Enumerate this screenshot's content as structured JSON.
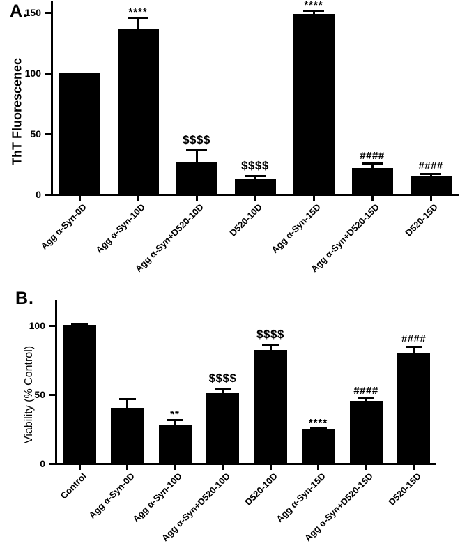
{
  "chart_data": [
    {
      "type": "bar",
      "panel_label": "A.",
      "title": "",
      "ylabel": "ThT Fluorescenec",
      "xlabel": "",
      "categories": [
        "Agg α-Syn-0D",
        "Agg α-Syn-10D",
        "Agg α-Syn+D520-10D",
        "D520-10D",
        "Agg α-Syn-15D",
        "Agg α-Syn+D520-15D",
        "D520-15D"
      ],
      "values": [
        100,
        136,
        26,
        12,
        148,
        21,
        15
      ],
      "errors": [
        0,
        10,
        11,
        3.5,
        4,
        5,
        2
      ],
      "annotations": [
        "",
        "****",
        "$$$$",
        "$$$$",
        "****",
        "####",
        "####"
      ],
      "yticks": [
        0,
        50,
        100,
        150
      ],
      "ylim": [
        0,
        158
      ],
      "grid": false,
      "legend": null,
      "bar_color": "#000000"
    },
    {
      "type": "bar",
      "panel_label": "B.",
      "title": "",
      "ylabel": "Viability (% Control)",
      "xlabel": "",
      "categories": [
        "Control",
        "Agg α-Syn-0D",
        "Agg α-Syn-10D",
        "Agg α-Syn+D520-10D",
        "D520-10D",
        "Agg α-Syn-15D",
        "Agg α-Syn+D520-15D",
        "D520-15D"
      ],
      "values": [
        100,
        40,
        28,
        51,
        82,
        24,
        45,
        80
      ],
      "errors": [
        1.5,
        7,
        4,
        3.5,
        4.5,
        2,
        2.5,
        5
      ],
      "annotations": [
        "",
        "",
        "**",
        "$$$$",
        "$$$$",
        "****",
        "####",
        "####"
      ],
      "yticks": [
        0,
        50,
        100
      ],
      "ylim": [
        0,
        118
      ],
      "grid": false,
      "legend": null,
      "bar_color": "#000000"
    }
  ]
}
